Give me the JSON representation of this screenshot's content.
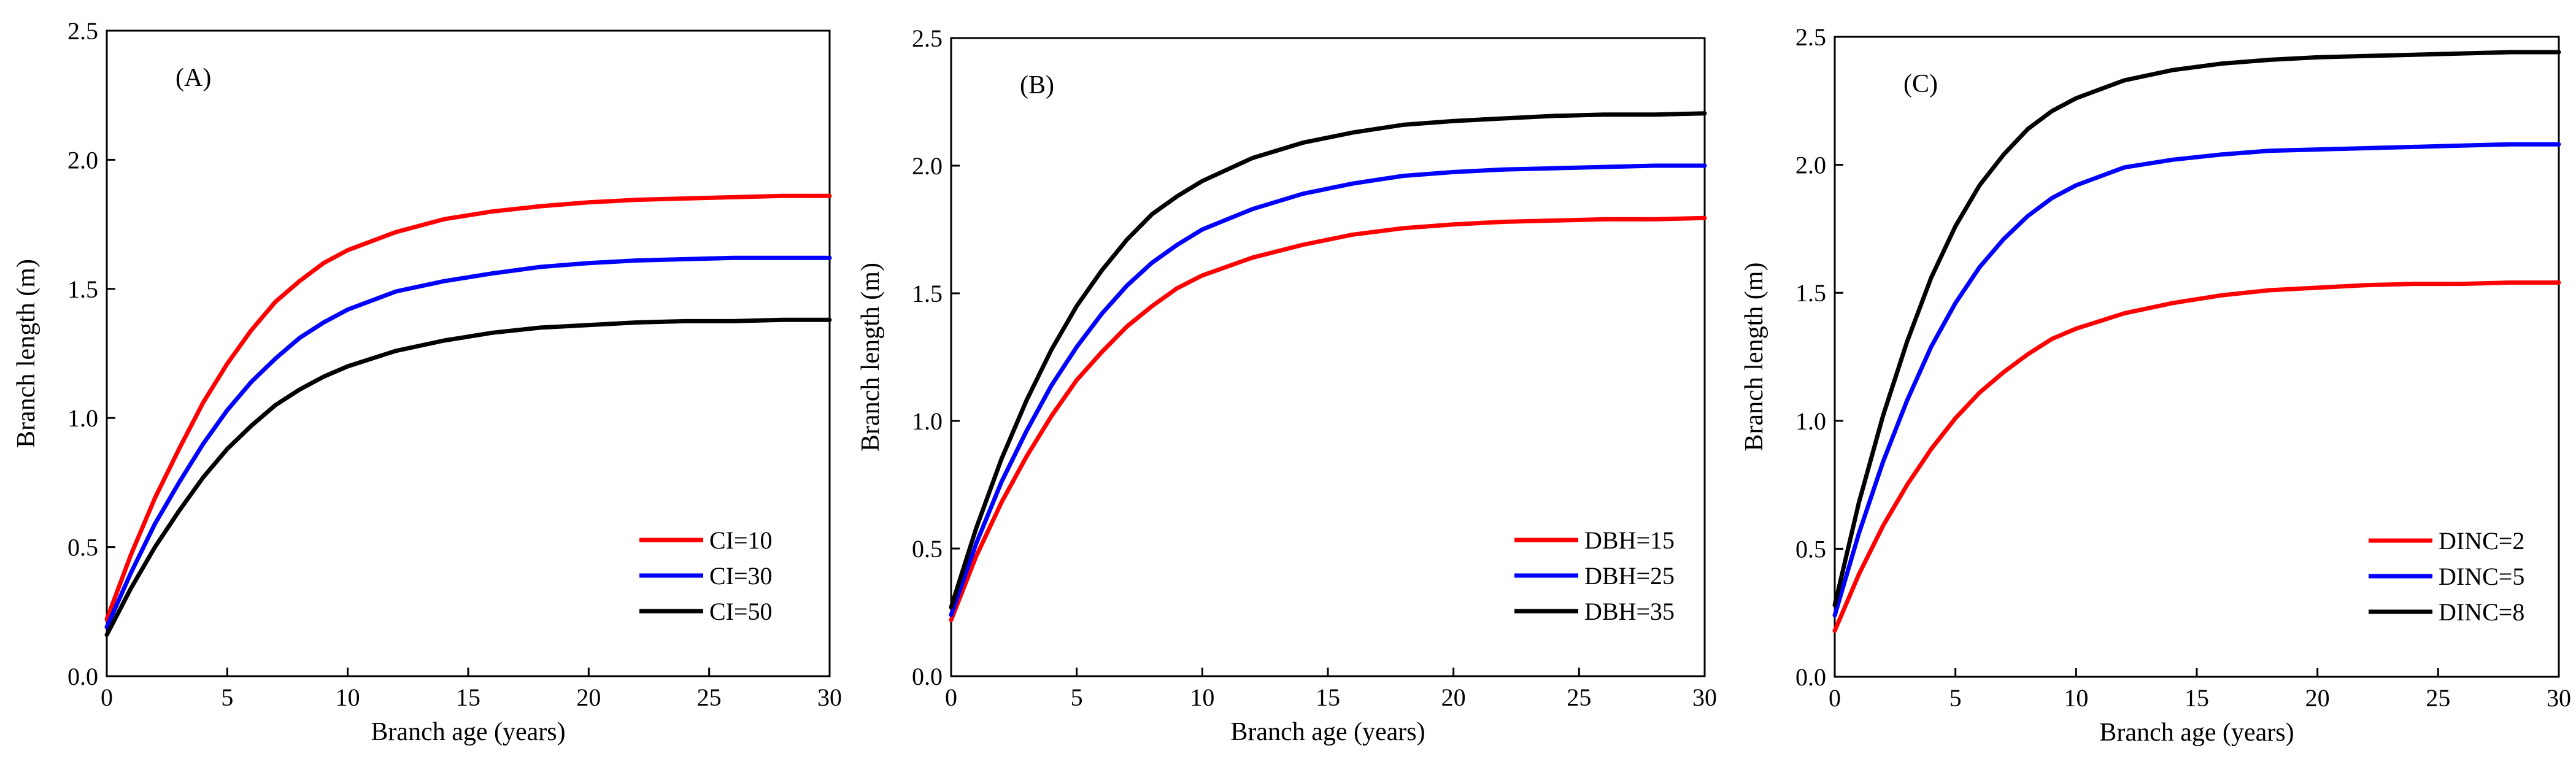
{
  "chart_data": [
    {
      "type": "line",
      "panel_label": "(A)",
      "xlabel": "Branch age (years)",
      "ylabel": "Branch length (m)",
      "xlim": [
        0,
        30
      ],
      "ylim": [
        0,
        2.5
      ],
      "xticks": [
        0,
        5,
        10,
        15,
        20,
        25,
        30
      ],
      "xtick_labels": [
        "0",
        "5",
        "10",
        "15",
        "20",
        "25",
        "30"
      ],
      "yticks": [
        0,
        0.5,
        1.0,
        1.5,
        2.0,
        2.5
      ],
      "ytick_labels": [
        "0.0",
        "0.5",
        "1.0",
        "1.5",
        "2.0",
        "2.5"
      ],
      "legend_position": "bottom-right",
      "x": [
        0,
        1,
        2,
        3,
        4,
        5,
        6,
        7,
        8,
        9,
        10,
        12,
        14,
        16,
        18,
        20,
        22,
        24,
        26,
        28,
        30
      ],
      "series": [
        {
          "name": "CI=10",
          "color": "#ff0000",
          "values": [
            0.22,
            0.47,
            0.69,
            0.88,
            1.06,
            1.21,
            1.34,
            1.45,
            1.53,
            1.6,
            1.65,
            1.72,
            1.77,
            1.8,
            1.82,
            1.835,
            1.845,
            1.85,
            1.855,
            1.86,
            1.86
          ]
        },
        {
          "name": "CI=30",
          "color": "#0000ff",
          "values": [
            0.19,
            0.4,
            0.59,
            0.75,
            0.9,
            1.03,
            1.14,
            1.23,
            1.31,
            1.37,
            1.42,
            1.49,
            1.53,
            1.56,
            1.585,
            1.6,
            1.61,
            1.615,
            1.62,
            1.62,
            1.62
          ]
        },
        {
          "name": "CI=50",
          "color": "#000000",
          "values": [
            0.16,
            0.34,
            0.5,
            0.64,
            0.77,
            0.88,
            0.97,
            1.05,
            1.11,
            1.16,
            1.2,
            1.26,
            1.3,
            1.33,
            1.35,
            1.36,
            1.37,
            1.375,
            1.375,
            1.38,
            1.38
          ]
        }
      ]
    },
    {
      "type": "line",
      "panel_label": "(B)",
      "xlabel": "Branch age (years)",
      "ylabel": "Branch length (m)",
      "xlim": [
        0,
        30
      ],
      "ylim": [
        0,
        2.5
      ],
      "xticks": [
        0,
        5,
        10,
        15,
        20,
        25,
        30
      ],
      "xtick_labels": [
        "0",
        "5",
        "10",
        "15",
        "20",
        "25",
        "30"
      ],
      "yticks": [
        0,
        0.5,
        1.0,
        1.5,
        2.0,
        2.5
      ],
      "ytick_labels": [
        "0.0",
        "0.5",
        "1.0",
        "1.5",
        "2.0",
        "2.5"
      ],
      "legend_position": "bottom-right",
      "x": [
        0,
        1,
        2,
        3,
        4,
        5,
        6,
        7,
        8,
        9,
        10,
        12,
        14,
        16,
        18,
        20,
        22,
        24,
        26,
        28,
        30
      ],
      "series": [
        {
          "name": "DBH=15",
          "color": "#ff0000",
          "values": [
            0.22,
            0.47,
            0.68,
            0.86,
            1.02,
            1.16,
            1.27,
            1.37,
            1.45,
            1.52,
            1.57,
            1.64,
            1.69,
            1.73,
            1.755,
            1.77,
            1.78,
            1.785,
            1.79,
            1.79,
            1.795
          ]
        },
        {
          "name": "DBH=25",
          "color": "#0000ff",
          "values": [
            0.24,
            0.52,
            0.76,
            0.96,
            1.14,
            1.29,
            1.42,
            1.53,
            1.62,
            1.69,
            1.75,
            1.83,
            1.89,
            1.93,
            1.96,
            1.975,
            1.985,
            1.99,
            1.995,
            2.0,
            2.0
          ]
        },
        {
          "name": "DBH=35",
          "color": "#000000",
          "values": [
            0.27,
            0.58,
            0.85,
            1.08,
            1.28,
            1.45,
            1.59,
            1.71,
            1.81,
            1.88,
            1.94,
            2.03,
            2.09,
            2.13,
            2.16,
            2.175,
            2.185,
            2.195,
            2.2,
            2.2,
            2.205
          ]
        }
      ]
    },
    {
      "type": "line",
      "panel_label": "(C)",
      "xlabel": "Branch age (years)",
      "ylabel": "Branch length (m)",
      "xlim": [
        0,
        30
      ],
      "ylim": [
        0,
        2.5
      ],
      "xticks": [
        0,
        5,
        10,
        15,
        20,
        25,
        30
      ],
      "xtick_labels": [
        "0",
        "5",
        "10",
        "15",
        "20",
        "25",
        "30"
      ],
      "yticks": [
        0,
        0.5,
        1.0,
        1.5,
        2.0,
        2.5
      ],
      "ytick_labels": [
        "0.0",
        "0.5",
        "1.0",
        "1.5",
        "2.0",
        "2.5"
      ],
      "legend_position": "bottom-right",
      "x": [
        0,
        1,
        2,
        3,
        4,
        5,
        6,
        7,
        8,
        9,
        10,
        12,
        14,
        16,
        18,
        20,
        22,
        24,
        26,
        28,
        30
      ],
      "series": [
        {
          "name": "DINC=2",
          "color": "#ff0000",
          "values": [
            0.18,
            0.4,
            0.59,
            0.75,
            0.89,
            1.01,
            1.11,
            1.19,
            1.26,
            1.32,
            1.36,
            1.42,
            1.46,
            1.49,
            1.51,
            1.52,
            1.53,
            1.535,
            1.535,
            1.54,
            1.54
          ]
        },
        {
          "name": "DINC=5",
          "color": "#0000ff",
          "values": [
            0.24,
            0.56,
            0.84,
            1.08,
            1.29,
            1.46,
            1.6,
            1.71,
            1.8,
            1.87,
            1.92,
            1.99,
            2.02,
            2.04,
            2.055,
            2.06,
            2.065,
            2.07,
            2.075,
            2.08,
            2.08
          ]
        },
        {
          "name": "DINC=8",
          "color": "#000000",
          "values": [
            0.28,
            0.68,
            1.02,
            1.31,
            1.56,
            1.76,
            1.92,
            2.04,
            2.14,
            2.21,
            2.26,
            2.33,
            2.37,
            2.395,
            2.41,
            2.42,
            2.425,
            2.43,
            2.435,
            2.44,
            2.44
          ]
        }
      ]
    }
  ]
}
